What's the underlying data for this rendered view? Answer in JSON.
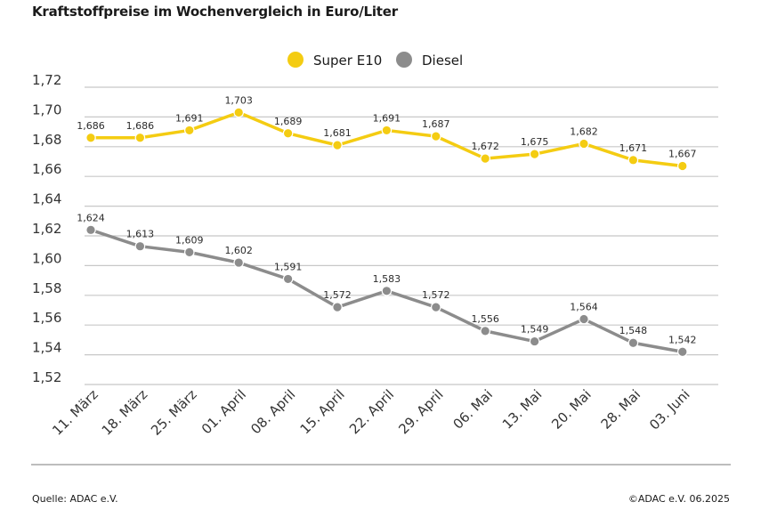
{
  "title": "Kraftstoffpreise im Wochenvergleich in Euro/Liter",
  "source": "Quelle: ADAC e.V.",
  "copyright": "©ADAC e.V. 06.2025",
  "colors": {
    "super": "#f4cc12",
    "diesel": "#8c8c8c",
    "grid": "#c8c8c8"
  },
  "chart_data": {
    "type": "line",
    "title": "Kraftstoffpreise im Wochenvergleich in Euro/Liter",
    "xlabel": "",
    "ylabel": "",
    "ylim": [
      1.52,
      1.72
    ],
    "yticks": [
      "1,72",
      "1,70",
      "1,68",
      "1,66",
      "1,64",
      "1,62",
      "1,60",
      "1,58",
      "1,56",
      "1,54",
      "1,52"
    ],
    "categories": [
      "11. März",
      "18. März",
      "25. März",
      "01. April",
      "08. April",
      "15. April",
      "22. April",
      "29. April",
      "06. Mai",
      "13. Mai",
      "20. Mai",
      "28. Mai",
      "03. Juni"
    ],
    "legend_position": "top-center",
    "series": [
      {
        "name": "Super E10",
        "values": [
          1.686,
          1.686,
          1.691,
          1.703,
          1.689,
          1.681,
          1.691,
          1.687,
          1.672,
          1.675,
          1.682,
          1.671,
          1.667
        ],
        "labels": [
          "1,686",
          "1,686",
          "1,691",
          "1,703",
          "1,689",
          "1,681",
          "1,691",
          "1,687",
          "1,672",
          "1,675",
          "1,682",
          "1,671",
          "1,667"
        ]
      },
      {
        "name": "Diesel",
        "values": [
          1.624,
          1.613,
          1.609,
          1.602,
          1.591,
          1.572,
          1.583,
          1.572,
          1.556,
          1.549,
          1.564,
          1.548,
          1.542
        ],
        "labels": [
          "1,624",
          "1,613",
          "1,609",
          "1,602",
          "1,591",
          "1,572",
          "1,583",
          "1,572",
          "1,556",
          "1,549",
          "1,564",
          "1,548",
          "1,542"
        ]
      }
    ]
  }
}
